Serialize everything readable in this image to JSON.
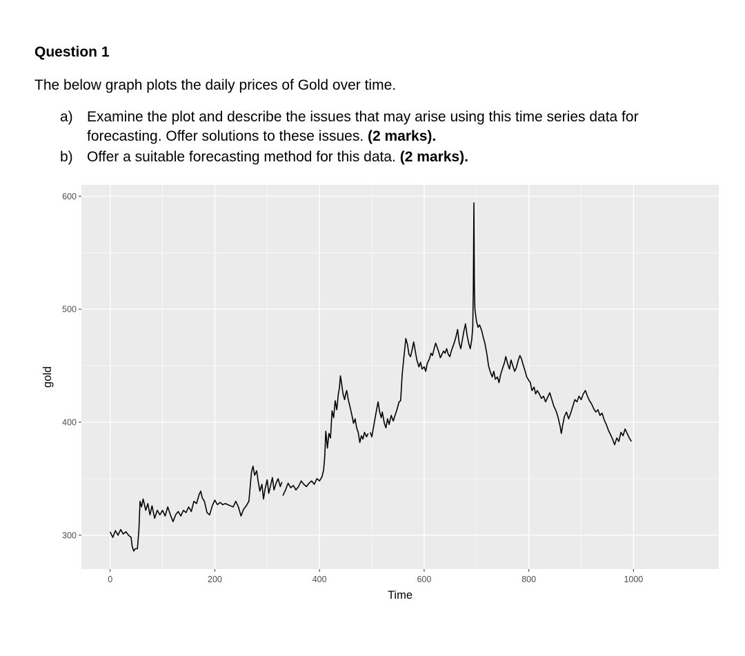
{
  "question": {
    "heading": "Question 1",
    "intro": "The below graph plots the daily prices of Gold over time.",
    "items": [
      {
        "label": "a)",
        "text": "Examine the plot and describe the issues that may arise using this time series data for forecasting. Offer solutions to these issues.",
        "marks": "(2 marks)."
      },
      {
        "label": "b)",
        "text": "Offer a suitable forecasting method for this data.",
        "marks": "(2 marks)."
      }
    ]
  },
  "chart_data": {
    "type": "line",
    "xlabel": "Time",
    "ylabel": "gold",
    "xlim": [
      -55,
      1163
    ],
    "ylim": [
      270,
      610
    ],
    "x_ticks": [
      0,
      200,
      400,
      600,
      800,
      1000
    ],
    "y_ticks": [
      300,
      400,
      500,
      600
    ],
    "grid": true,
    "panel_color": "#ebebeb",
    "line_color": "#000000",
    "series": [
      {
        "points": [
          [
            0,
            303
          ],
          [
            5,
            298
          ],
          [
            10,
            304
          ],
          [
            15,
            300
          ],
          [
            20,
            305
          ],
          [
            25,
            301
          ],
          [
            30,
            303
          ],
          [
            35,
            300
          ],
          [
            40,
            298
          ],
          [
            42,
            290
          ],
          [
            45,
            286
          ],
          [
            48,
            288
          ],
          [
            52,
            288
          ],
          [
            55,
            305
          ],
          [
            57,
            330
          ],
          [
            60,
            325
          ],
          [
            63,
            332
          ],
          [
            68,
            322
          ],
          [
            72,
            328
          ],
          [
            76,
            318
          ],
          [
            80,
            326
          ],
          [
            85,
            315
          ],
          [
            90,
            322
          ],
          [
            95,
            318
          ],
          [
            100,
            322
          ],
          [
            105,
            317
          ],
          [
            110,
            325
          ],
          [
            115,
            318
          ],
          [
            120,
            312
          ],
          [
            125,
            318
          ],
          [
            130,
            321
          ],
          [
            135,
            317
          ],
          [
            140,
            322
          ],
          [
            145,
            320
          ],
          [
            150,
            325
          ],
          [
            155,
            321
          ],
          [
            160,
            330
          ],
          [
            165,
            328
          ],
          [
            170,
            336
          ],
          [
            173,
            339
          ],
          [
            176,
            333
          ],
          [
            180,
            330
          ],
          [
            185,
            320
          ],
          [
            190,
            318
          ],
          [
            195,
            326
          ],
          [
            200,
            331
          ],
          [
            205,
            327
          ],
          [
            210,
            329
          ],
          [
            215,
            327
          ],
          [
            220,
            328
          ],
          [
            225,
            327
          ],
          [
            230,
            326
          ],
          [
            235,
            325
          ],
          [
            240,
            330
          ],
          [
            245,
            325
          ],
          [
            250,
            317
          ],
          [
            255,
            323
          ],
          [
            260,
            326
          ],
          [
            265,
            330
          ],
          [
            268,
            345
          ],
          [
            270,
            356
          ],
          [
            273,
            361
          ],
          [
            276,
            353
          ],
          [
            280,
            357
          ],
          [
            283,
            347
          ],
          [
            286,
            339
          ],
          [
            290,
            345
          ],
          [
            293,
            332
          ],
          [
            296,
            341
          ],
          [
            300,
            349
          ],
          [
            303,
            337
          ],
          [
            306,
            343
          ],
          [
            310,
            351
          ],
          [
            313,
            340
          ],
          [
            317,
            346
          ],
          [
            321,
            350
          ],
          [
            325,
            343
          ],
          [
            328,
            347
          ],
          null,
          [
            330,
            335
          ],
          [
            335,
            340
          ],
          [
            340,
            346
          ],
          [
            345,
            342
          ],
          [
            350,
            344
          ],
          [
            355,
            340
          ],
          [
            360,
            343
          ],
          [
            365,
            348
          ],
          [
            370,
            345
          ],
          [
            375,
            343
          ],
          [
            380,
            346
          ],
          [
            385,
            348
          ],
          [
            390,
            345
          ],
          [
            395,
            350
          ],
          [
            400,
            348
          ],
          [
            405,
            352
          ],
          [
            408,
            358
          ],
          [
            410,
            370
          ],
          [
            412,
            392
          ],
          [
            415,
            377
          ],
          [
            418,
            390
          ],
          [
            421,
            386
          ],
          [
            424,
            410
          ],
          [
            427,
            404
          ],
          [
            430,
            419
          ],
          [
            433,
            411
          ],
          [
            436,
            425
          ],
          [
            438,
            430
          ],
          [
            440,
            441
          ],
          [
            442,
            435
          ],
          [
            445,
            425
          ],
          [
            448,
            420
          ],
          [
            450,
            425
          ],
          [
            452,
            428
          ],
          [
            455,
            420
          ],
          [
            458,
            414
          ],
          [
            460,
            410
          ],
          [
            462,
            406
          ],
          [
            465,
            399
          ],
          [
            468,
            403
          ],
          [
            471,
            395
          ],
          [
            474,
            391
          ],
          [
            477,
            382
          ],
          [
            480,
            388
          ],
          [
            483,
            385
          ],
          [
            486,
            391
          ],
          [
            490,
            387
          ],
          [
            493,
            390
          ],
          null,
          [
            497,
            391
          ],
          [
            500,
            387
          ],
          [
            503,
            395
          ],
          [
            506,
            403
          ],
          [
            509,
            411
          ],
          [
            512,
            418
          ],
          [
            515,
            409
          ],
          [
            518,
            404
          ],
          [
            520,
            409
          ],
          [
            524,
            399
          ],
          [
            527,
            395
          ],
          [
            530,
            403
          ],
          [
            533,
            398
          ],
          [
            537,
            406
          ],
          [
            541,
            401
          ],
          [
            545,
            407
          ],
          [
            548,
            411
          ],
          [
            552,
            418
          ],
          [
            555,
            419
          ],
          [
            558,
            442
          ],
          [
            562,
            461
          ],
          [
            565,
            474
          ],
          [
            568,
            469
          ],
          [
            571,
            460
          ],
          [
            574,
            458
          ],
          [
            577,
            464
          ],
          [
            580,
            471
          ],
          [
            583,
            463
          ],
          [
            586,
            455
          ],
          [
            590,
            449
          ],
          [
            593,
            453
          ],
          [
            596,
            447
          ],
          [
            600,
            449
          ],
          [
            603,
            445
          ],
          [
            606,
            452
          ],
          [
            610,
            456
          ],
          [
            613,
            461
          ],
          [
            616,
            459
          ],
          [
            619,
            465
          ],
          [
            622,
            470
          ],
          [
            625,
            466
          ],
          [
            628,
            462
          ],
          [
            631,
            457
          ],
          [
            634,
            460
          ],
          [
            637,
            463
          ],
          [
            640,
            461
          ],
          [
            643,
            465
          ],
          [
            646,
            460
          ],
          [
            649,
            458
          ],
          [
            652,
            463
          ],
          [
            655,
            467
          ],
          [
            658,
            471
          ],
          [
            661,
            476
          ],
          [
            664,
            482
          ],
          [
            667,
            470
          ],
          [
            670,
            465
          ],
          [
            673,
            473
          ],
          [
            676,
            481
          ],
          [
            679,
            487
          ],
          [
            682,
            477
          ],
          [
            685,
            470
          ],
          [
            688,
            465
          ],
          [
            691,
            473
          ],
          [
            693,
            485
          ],
          [
            694,
            520
          ],
          [
            695,
            594
          ],
          [
            696,
            520
          ],
          [
            697,
            500
          ],
          [
            700,
            489
          ],
          [
            703,
            484
          ],
          [
            706,
            486
          ],
          [
            710,
            481
          ],
          [
            713,
            475
          ],
          [
            716,
            470
          ],
          [
            720,
            460
          ],
          [
            723,
            450
          ],
          [
            726,
            445
          ],
          [
            730,
            440
          ],
          [
            733,
            445
          ],
          [
            736,
            438
          ],
          [
            740,
            440
          ],
          [
            743,
            435
          ],
          [
            746,
            442
          ],
          [
            750,
            448
          ],
          [
            753,
            452
          ],
          [
            756,
            458
          ],
          [
            760,
            451
          ],
          [
            763,
            447
          ],
          [
            766,
            455
          ],
          [
            770,
            449
          ],
          [
            773,
            445
          ],
          [
            776,
            448
          ],
          [
            780,
            455
          ],
          [
            783,
            459
          ],
          [
            786,
            456
          ],
          [
            789,
            451
          ],
          [
            793,
            445
          ],
          [
            796,
            440
          ],
          [
            800,
            437
          ],
          [
            803,
            435
          ],
          [
            806,
            428
          ],
          [
            810,
            431
          ],
          [
            813,
            425
          ],
          [
            816,
            428
          ],
          [
            820,
            425
          ],
          [
            824,
            421
          ],
          [
            828,
            423
          ],
          [
            832,
            418
          ],
          [
            836,
            422
          ],
          [
            840,
            426
          ],
          [
            844,
            420
          ],
          [
            848,
            414
          ],
          [
            852,
            410
          ],
          [
            856,
            404
          ],
          [
            860,
            396
          ],
          [
            862,
            390
          ],
          [
            865,
            398
          ],
          [
            868,
            405
          ],
          [
            872,
            409
          ],
          [
            876,
            403
          ],
          [
            880,
            408
          ],
          [
            884,
            414
          ],
          [
            888,
            420
          ],
          [
            892,
            418
          ],
          [
            896,
            423
          ],
          [
            900,
            420
          ],
          [
            904,
            425
          ],
          [
            908,
            428
          ],
          [
            912,
            423
          ],
          [
            916,
            419
          ],
          [
            920,
            416
          ],
          [
            924,
            412
          ],
          [
            928,
            409
          ],
          [
            932,
            411
          ],
          [
            936,
            406
          ],
          [
            940,
            408
          ],
          [
            944,
            402
          ],
          [
            948,
            398
          ],
          [
            952,
            393
          ],
          [
            956,
            389
          ],
          [
            960,
            385
          ],
          [
            964,
            380
          ],
          [
            968,
            386
          ],
          [
            972,
            383
          ],
          [
            976,
            391
          ],
          [
            980,
            388
          ],
          [
            984,
            394
          ],
          [
            988,
            390
          ],
          [
            992,
            386
          ],
          [
            996,
            383
          ]
        ]
      }
    ]
  }
}
